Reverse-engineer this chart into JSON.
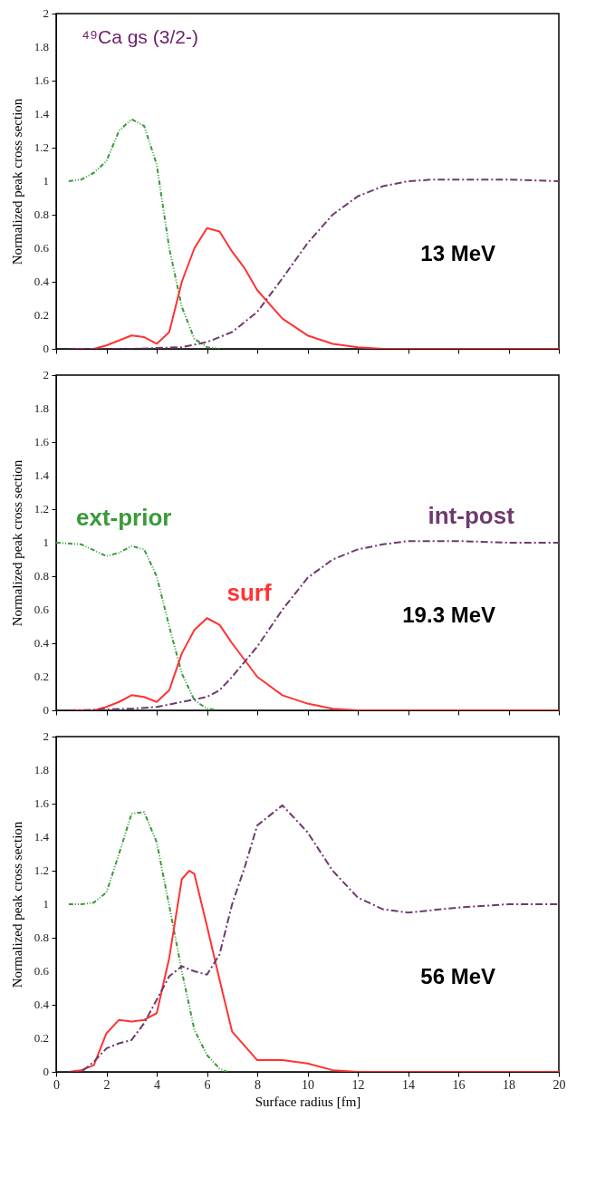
{
  "chart_data": [
    {
      "type": "line",
      "ylabel": "Normalized peak cross section",
      "xlim": [
        0,
        20
      ],
      "xticks": [
        0,
        2,
        4,
        6,
        8,
        10,
        12,
        14,
        16,
        18,
        20
      ],
      "ylim": [
        0,
        2
      ],
      "yticks": [
        0,
        0.2,
        0.4,
        0.6,
        0.8,
        1,
        1.2,
        1.4,
        1.6,
        1.8,
        2
      ],
      "tick_labels": "y",
      "annotations": [
        "⁴⁹Ca gs (3/2-)",
        "13 MeV"
      ],
      "series": [
        {
          "color": "#3a9a3a",
          "line_style": "dotted",
          "x": [
            0.5,
            1,
            1.5,
            2,
            2.5,
            3,
            3.5,
            4,
            4.5,
            5,
            5.5,
            6,
            6.5
          ],
          "values": [
            1.0,
            1.01,
            1.05,
            1.12,
            1.3,
            1.37,
            1.33,
            1.1,
            0.6,
            0.25,
            0.06,
            0.01,
            0
          ]
        },
        {
          "color": "#ff3333",
          "line_style": "solid",
          "x": [
            0.5,
            1.5,
            2,
            2.5,
            3,
            3.5,
            4,
            4.5,
            5,
            5.5,
            6,
            6.5,
            7,
            7.5,
            8,
            9,
            10,
            11,
            12,
            13,
            20
          ],
          "values": [
            0,
            0,
            0.02,
            0.05,
            0.08,
            0.07,
            0.03,
            0.1,
            0.4,
            0.6,
            0.72,
            0.7,
            0.58,
            0.48,
            0.35,
            0.18,
            0.08,
            0.03,
            0.01,
            0,
            0
          ]
        },
        {
          "color": "#6e3a6e",
          "line_style": "dashed",
          "x": [
            0.5,
            3,
            4,
            5,
            6,
            7,
            8,
            9,
            10,
            11,
            12,
            13,
            14,
            15,
            16,
            18,
            20
          ],
          "values": [
            0,
            0,
            0.005,
            0.01,
            0.04,
            0.1,
            0.22,
            0.42,
            0.63,
            0.8,
            0.91,
            0.97,
            1.0,
            1.01,
            1.01,
            1.01,
            1.0
          ]
        }
      ]
    },
    {
      "type": "line",
      "ylabel": "Normalized peak cross section",
      "xlim": [
        0,
        20
      ],
      "xticks": [
        0,
        2,
        4,
        6,
        8,
        10,
        12,
        14,
        16,
        18,
        20
      ],
      "ylim": [
        0,
        2
      ],
      "yticks": [
        0,
        0.2,
        0.4,
        0.6,
        0.8,
        1,
        1.2,
        1.4,
        1.6,
        1.8,
        2
      ],
      "tick_labels": "y",
      "annotations": [
        "19.3 MeV"
      ],
      "series": [
        {
          "name": "ext-prior",
          "color": "#3a9a3a",
          "line_style": "dotted",
          "x": [
            0,
            1,
            2,
            2.5,
            3,
            3.5,
            4,
            4.5,
            5,
            5.5,
            6,
            6.5
          ],
          "values": [
            1.0,
            0.99,
            0.92,
            0.94,
            0.98,
            0.96,
            0.8,
            0.5,
            0.22,
            0.06,
            0.01,
            0
          ]
        },
        {
          "name": "surf",
          "color": "#ff3333",
          "line_style": "solid",
          "x": [
            0.5,
            1.5,
            2,
            2.5,
            3,
            3.5,
            4,
            4.5,
            5,
            5.5,
            6,
            6.5,
            7,
            7.5,
            8,
            9,
            10,
            11,
            12,
            20
          ],
          "values": [
            0,
            0,
            0.02,
            0.05,
            0.09,
            0.08,
            0.05,
            0.12,
            0.34,
            0.48,
            0.55,
            0.51,
            0.4,
            0.3,
            0.2,
            0.09,
            0.04,
            0.01,
            0,
            0
          ]
        },
        {
          "name": "int-post",
          "color": "#6e3a6e",
          "line_style": "dashed",
          "x": [
            0.5,
            2,
            3,
            4,
            5,
            6,
            6.5,
            7,
            8,
            9,
            10,
            11,
            12,
            13,
            14,
            15,
            16,
            18,
            20
          ],
          "values": [
            0,
            0.005,
            0.01,
            0.02,
            0.05,
            0.08,
            0.12,
            0.2,
            0.38,
            0.6,
            0.79,
            0.9,
            0.96,
            0.99,
            1.01,
            1.01,
            1.01,
            1.0,
            1.0
          ]
        }
      ]
    },
    {
      "type": "line",
      "xlabel": "Surface radius [fm]",
      "ylabel": "Normalized peak cross section",
      "xlim": [
        0,
        20
      ],
      "xticks": [
        0,
        2,
        4,
        6,
        8,
        10,
        12,
        14,
        16,
        18,
        20
      ],
      "ylim": [
        0,
        2
      ],
      "yticks": [
        0,
        0.2,
        0.4,
        0.6,
        0.8,
        1,
        1.2,
        1.4,
        1.6,
        1.8,
        2
      ],
      "annotations": [
        "56 MeV"
      ],
      "series": [
        {
          "color": "#3a9a3a",
          "line_style": "dotted",
          "x": [
            0.5,
            1,
            1.5,
            2,
            2.5,
            3,
            3.5,
            4,
            4.5,
            5,
            5.5,
            6,
            6.5,
            6.8
          ],
          "values": [
            1.0,
            1.0,
            1.01,
            1.07,
            1.3,
            1.54,
            1.55,
            1.37,
            0.99,
            0.6,
            0.25,
            0.1,
            0.02,
            0
          ]
        },
        {
          "color": "#ff3333",
          "line_style": "solid",
          "x": [
            0.5,
            1,
            1.5,
            2,
            2.5,
            3,
            3.5,
            4,
            4.5,
            5,
            5.3,
            5.5,
            6,
            6.5,
            7,
            8,
            9,
            10,
            11,
            12,
            20
          ],
          "values": [
            0,
            0.01,
            0.04,
            0.23,
            0.31,
            0.3,
            0.31,
            0.35,
            0.68,
            1.15,
            1.2,
            1.18,
            0.87,
            0.55,
            0.24,
            0.07,
            0.07,
            0.05,
            0.01,
            0,
            0
          ]
        },
        {
          "color": "#6e3a6e",
          "line_style": "dashed",
          "x": [
            0.5,
            1,
            1.5,
            2,
            2.5,
            3,
            3.5,
            4,
            4.5,
            5,
            5.5,
            6,
            6.5,
            7,
            7.5,
            8,
            9,
            10,
            11,
            12,
            13,
            14,
            16,
            18,
            20
          ],
          "values": [
            0,
            0,
            0.06,
            0.14,
            0.17,
            0.19,
            0.29,
            0.43,
            0.57,
            0.63,
            0.6,
            0.58,
            0.7,
            1.0,
            1.22,
            1.47,
            1.59,
            1.43,
            1.2,
            1.04,
            0.97,
            0.95,
            0.98,
            1.0,
            1.0
          ]
        }
      ]
    }
  ]
}
